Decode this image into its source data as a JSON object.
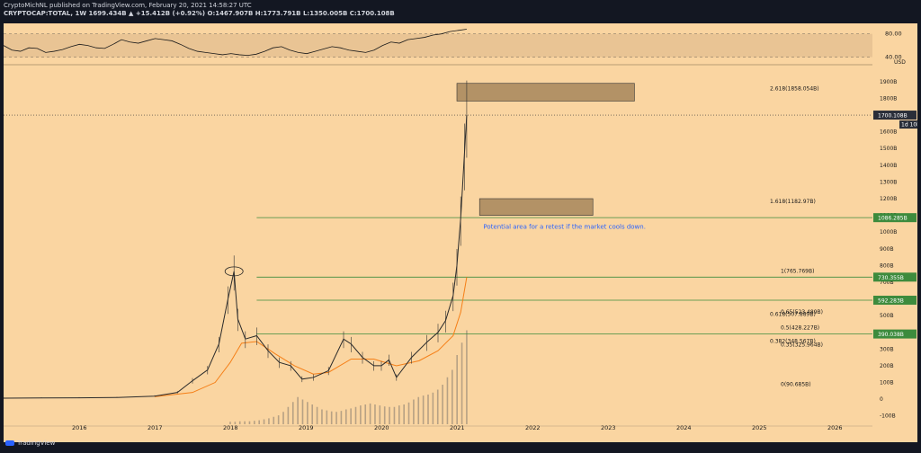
{
  "header": {
    "line1": "CryptoMichNL published on TradingView.com, February 20, 2021 14:58:27 UTC",
    "line2": "CRYPTOCAP:TOTAL, 1W 1699.434B ▲ +15.412B (+0.92%) O:1467.907B H:1773.791B L:1350.005B C:1700.108B"
  },
  "branding": {
    "logo_text": "TradingView"
  },
  "colors": {
    "bg": "#fad5a1",
    "panel": "#131722",
    "ma": "#f57f17",
    "level": "#3d8b3d",
    "box": "#a6865c",
    "rsi": "#1a1a1a",
    "note": "#2962ff"
  },
  "rsi_panel": {
    "ticks": [
      "80.00",
      "40.00"
    ],
    "values": [
      60,
      52,
      50,
      56,
      55,
      48,
      50,
      53,
      58,
      62,
      60,
      56,
      55,
      62,
      70,
      66,
      64,
      68,
      72,
      70,
      68,
      62,
      55,
      50,
      48,
      46,
      44,
      46,
      44,
      43,
      45,
      50,
      56,
      58,
      52,
      48,
      46,
      50,
      54,
      58,
      56,
      52,
      50,
      48,
      52,
      60,
      66,
      64,
      70,
      72,
      74,
      78,
      80,
      84,
      86,
      88
    ]
  },
  "annotation": {
    "text": "Potential area for a retest if the market cools down."
  },
  "chart_data": {
    "type": "line",
    "title": "",
    "xlabel": "",
    "ylabel": "USD",
    "y_unit": "USD",
    "y_tick_labels": [
      "1900B",
      "1800B",
      "1700B",
      "1600B",
      "1500B",
      "1400B",
      "1300B",
      "1200B",
      "1100B",
      "1000B",
      "900B",
      "800B",
      "700B",
      "600B",
      "500B",
      "400B",
      "300B",
      "200B",
      "100B",
      "0",
      "-100B"
    ],
    "ylim": [
      -150,
      1980
    ],
    "x_tick_labels": [
      "2016",
      "2017",
      "2018",
      "2019",
      "2020",
      "2021",
      "2022",
      "2023",
      "2024",
      "2025",
      "2026"
    ],
    "xlim": [
      2015.0,
      2026.5
    ],
    "series": [
      {
        "role": "price",
        "x": [
          2015.0,
          2015.5,
          2016.0,
          2016.5,
          2017.0,
          2017.3,
          2017.5,
          2017.7,
          2017.85,
          2017.97,
          2018.05,
          2018.1,
          2018.2,
          2018.35,
          2018.5,
          2018.65,
          2018.8,
          2018.95,
          2019.1,
          2019.3,
          2019.5,
          2019.6,
          2019.75,
          2019.9,
          2020.0,
          2020.1,
          2020.2,
          2020.4,
          2020.6,
          2020.75,
          2020.85,
          2020.95,
          2021.0,
          2021.05,
          2021.1,
          2021.13
        ],
        "values": [
          6,
          7,
          8,
          10,
          18,
          40,
          110,
          175,
          330,
          600,
          765,
          480,
          360,
          380,
          290,
          220,
          200,
          120,
          130,
          170,
          360,
          330,
          250,
          200,
          200,
          235,
          130,
          250,
          340,
          400,
          470,
          620,
          800,
          1080,
          1470,
          1700
        ]
      },
      {
        "role": "moving_average",
        "x": [
          2017.0,
          2017.5,
          2017.8,
          2018.0,
          2018.15,
          2018.35,
          2018.6,
          2018.85,
          2019.1,
          2019.3,
          2019.6,
          2019.9,
          2020.2,
          2020.5,
          2020.75,
          2020.95,
          2021.05,
          2021.13
        ],
        "values": [
          15,
          40,
          100,
          220,
          335,
          345,
          270,
          200,
          150,
          160,
          240,
          240,
          200,
          230,
          290,
          380,
          520,
          730
        ]
      }
    ],
    "volume": [
      5,
      5,
      6,
      6,
      6,
      7,
      8,
      10,
      12,
      15,
      18,
      25,
      35,
      45,
      55,
      50,
      45,
      40,
      35,
      30,
      28,
      26,
      25,
      27,
      30,
      32,
      35,
      38,
      40,
      42,
      40,
      38,
      36,
      35,
      35,
      38,
      40,
      44,
      50,
      55,
      58,
      60,
      64,
      70,
      80,
      95,
      110,
      140,
      165,
      190
    ],
    "horizontal_levels": [
      {
        "label": "1086.285B",
        "value": 1086.285
      },
      {
        "label": "730.355B",
        "value": 730.355
      },
      {
        "label": "592.283B",
        "value": 592.283
      },
      {
        "label": "390.038B",
        "value": 390.038
      }
    ],
    "fib_levels": [
      {
        "label": "2.618(1858.054B)",
        "value": 1858.054
      },
      {
        "label": "1.618(1182.97B)",
        "value": 1182.97
      },
      {
        "label": "1(765.769B)",
        "value": 765.769
      },
      {
        "label": "0.65(523.489B)",
        "value": 523.489
      },
      {
        "label": "0.618(507.889B)",
        "value": 507.889
      },
      {
        "label": "0.5(428.227B)",
        "value": 428.227
      },
      {
        "label": "0.382(348.567B)",
        "value": 348.567
      },
      {
        "label": "0.35(325.964B)",
        "value": 325.964
      },
      {
        "label": "0(90.685B)",
        "value": 90.685
      }
    ],
    "current_price": {
      "label": "1700.108B",
      "value": 1700.108,
      "countdown": "1d 10h"
    },
    "target_boxes": [
      {
        "x0": 2021.0,
        "x1": 2023.35,
        "y0": 1784,
        "y1": 1890
      },
      {
        "x0": 2021.3,
        "x1": 2022.8,
        "y0": 1100,
        "y1": 1200
      }
    ]
  }
}
